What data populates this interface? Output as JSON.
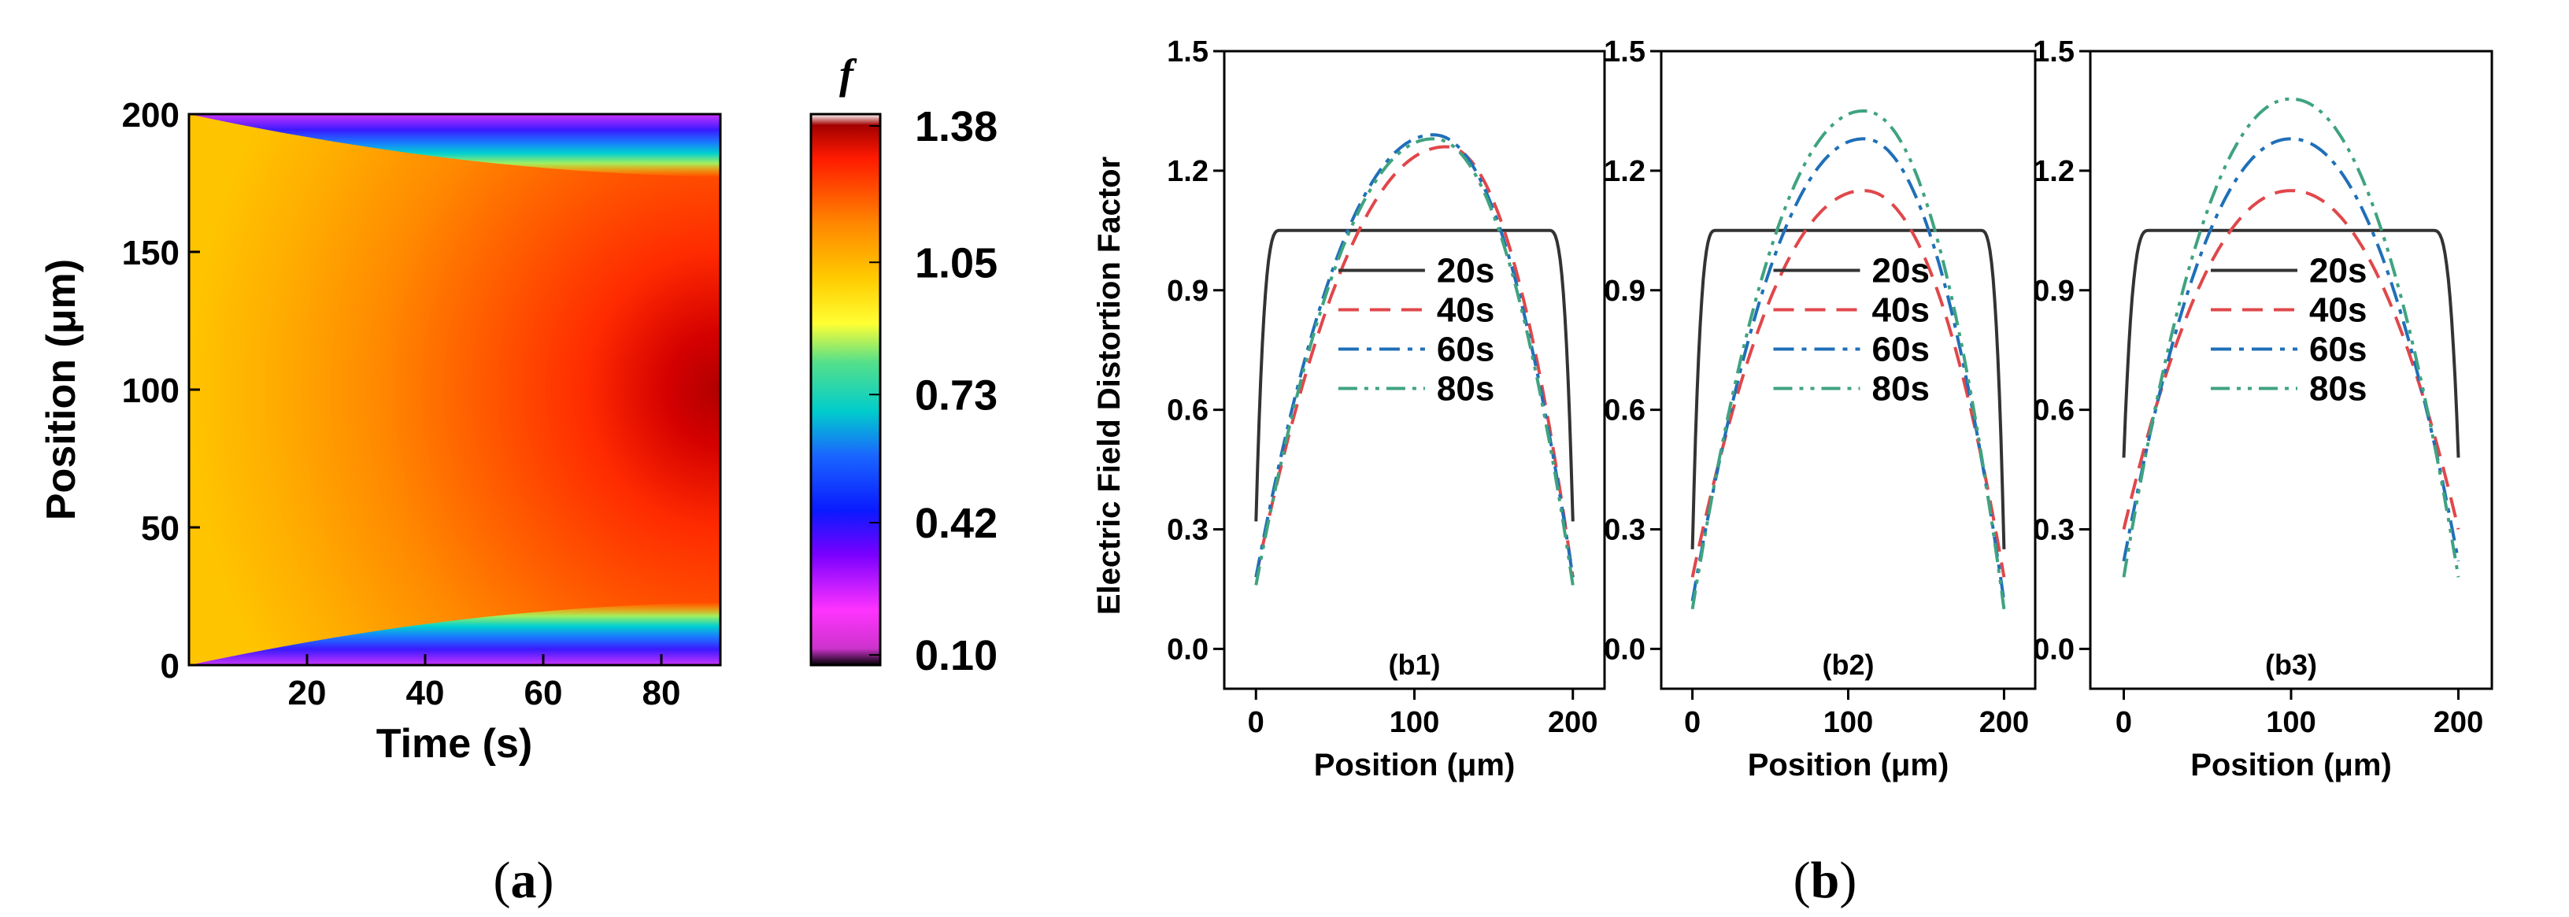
{
  "colors": {
    "s20": "#333333",
    "s40": "#e0474a",
    "s60": "#1f6fb8",
    "s80": "#3fa37f"
  },
  "captions": {
    "a_open": "(",
    "a_letter": "a",
    "a_close": ")",
    "b_open": "(",
    "b_letter": "b",
    "b_close": ")"
  },
  "chart_data": [
    {
      "type": "heatmap",
      "panel": "a",
      "xlabel": "Time (s)",
      "ylabel": "Position (μm)",
      "xlim": [
        0,
        90
      ],
      "ylim": [
        0,
        200
      ],
      "xticks": [
        "20",
        "40",
        "60",
        "80"
      ],
      "yticks": [
        "0",
        "50",
        "100",
        "150",
        "200"
      ],
      "colorbar": {
        "label": "f",
        "ticks": [
          "1.38",
          "1.05",
          "0.73",
          "0.42",
          "0.10"
        ],
        "min": 0.1,
        "max": 1.38
      },
      "description_values": {
        "center_max_at_80s": 1.38,
        "boundary_min": 0.1,
        "initial_uniform": 1.05
      }
    },
    {
      "type": "line",
      "panel": "b1",
      "label": "(b1)",
      "xlabel": "Position (μm)",
      "ylabel": "Electric Field Distortion Factor",
      "xlim": [
        -20,
        220
      ],
      "ylim": [
        -0.1,
        1.5
      ],
      "xticks": [
        "0",
        "100",
        "200"
      ],
      "yticks": [
        "0.0",
        "0.3",
        "0.6",
        "0.9",
        "1.2",
        "1.5"
      ],
      "series": [
        {
          "name": "20s",
          "style": "solid",
          "edge": 0.32,
          "peak": 1.05,
          "peak_x": 100,
          "flat": true
        },
        {
          "name": "40s",
          "style": "dash",
          "edge": 0.18,
          "peak": 1.26,
          "peak_x": 120
        },
        {
          "name": "60s",
          "style": "dashdot",
          "edge": 0.18,
          "peak": 1.29,
          "peak_x": 112
        },
        {
          "name": "80s",
          "style": "dashdotdot",
          "edge": 0.16,
          "peak": 1.28,
          "peak_x": 112
        }
      ]
    },
    {
      "type": "line",
      "panel": "b2",
      "label": "(b2)",
      "xlabel": "Position (μm)",
      "xlim": [
        -20,
        220
      ],
      "ylim": [
        -0.1,
        1.5
      ],
      "xticks": [
        "0",
        "100",
        "200"
      ],
      "yticks": [
        "0.0",
        "0.3",
        "0.6",
        "0.9",
        "1.2",
        "1.5"
      ],
      "series": [
        {
          "name": "20s",
          "style": "solid",
          "edge": 0.25,
          "peak": 1.05,
          "peak_x": 100,
          "flat": true
        },
        {
          "name": "40s",
          "style": "dash",
          "edge": 0.18,
          "peak": 1.15,
          "peak_x": 110
        },
        {
          "name": "60s",
          "style": "dashdot",
          "edge": 0.12,
          "peak": 1.28,
          "peak_x": 110
        },
        {
          "name": "80s",
          "style": "dashdotdot",
          "edge": 0.1,
          "peak": 1.35,
          "peak_x": 110
        }
      ]
    },
    {
      "type": "line",
      "panel": "b3",
      "label": "(b3)",
      "xlabel": "Position (μm)",
      "xlim": [
        -20,
        220
      ],
      "ylim": [
        -0.1,
        1.5
      ],
      "xticks": [
        "0",
        "100",
        "200"
      ],
      "yticks": [
        "0.0",
        "0.3",
        "0.6",
        "0.9",
        "1.2",
        "1.5"
      ],
      "series": [
        {
          "name": "20s",
          "style": "solid",
          "edge": 0.48,
          "peak": 1.05,
          "peak_x": 100,
          "flat": true
        },
        {
          "name": "40s",
          "style": "dash",
          "edge": 0.3,
          "peak": 1.15,
          "peak_x": 100
        },
        {
          "name": "60s",
          "style": "dashdot",
          "edge": 0.22,
          "peak": 1.28,
          "peak_x": 100
        },
        {
          "name": "80s",
          "style": "dashdotdot",
          "edge": 0.18,
          "peak": 1.38,
          "peak_x": 100
        }
      ]
    }
  ]
}
